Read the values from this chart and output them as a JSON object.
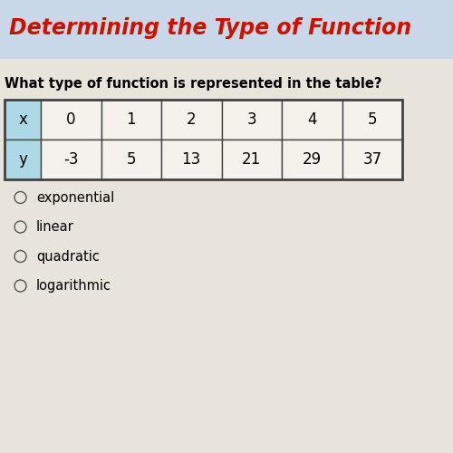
{
  "title": "Determining the Type of Function",
  "title_color": "#cc1100",
  "title_bg_color": "#c8d8e8",
  "question": "What type of function is represented in the table?",
  "table_x_label": "x",
  "table_y_label": "y",
  "x_values": [
    0,
    1,
    2,
    3,
    4,
    5
  ],
  "y_values": [
    -3,
    5,
    13,
    21,
    29,
    37
  ],
  "options": [
    "exponential",
    "linear",
    "quadratic",
    "logarithmic"
  ],
  "bg_color": "#e8e4dc",
  "header_cell_color": "#add8e6",
  "table_border_color": "#444444",
  "cell_bg_color": "#f5f2ec",
  "question_fontsize": 10.5,
  "title_fontsize": 17,
  "table_fontsize": 12,
  "option_fontsize": 10.5
}
